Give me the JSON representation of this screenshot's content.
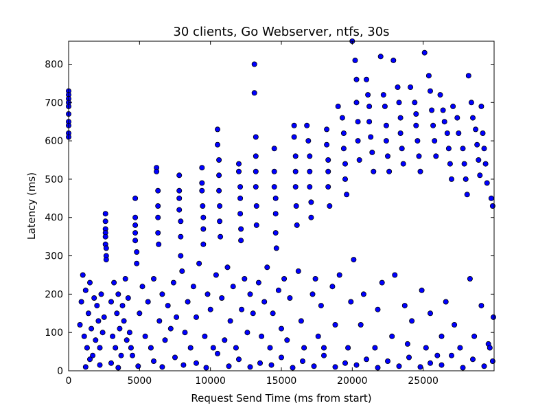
{
  "chart_data": {
    "type": "scatter",
    "title": "30 clients, Go Webserver, ntfs, 30s",
    "xlabel": "Request Send Time (ms from start)",
    "ylabel": "Latency (ms)",
    "xlim": [
      0,
      30000
    ],
    "ylim": [
      0,
      860
    ],
    "xticks": [
      0,
      5000,
      10000,
      15000,
      20000,
      25000
    ],
    "yticks": [
      0,
      100,
      200,
      300,
      400,
      500,
      600,
      700,
      800
    ],
    "grid": false,
    "legend": "none",
    "marker_color": "#0000ff",
    "marker_edge_color": "#000000",
    "series": [
      {
        "x": [
          0,
          0,
          0,
          0,
          0,
          0,
          0,
          0,
          0,
          0,
          2600,
          2600,
          2600,
          2600,
          2600,
          2600,
          2650,
          2650,
          2650,
          4700,
          4700,
          4700,
          4700,
          4700,
          4800,
          4800,
          6200,
          6200,
          6300,
          6300,
          6300,
          6300,
          6350,
          7800,
          7800,
          7800,
          7800,
          7900,
          7900,
          7900,
          9400,
          9400,
          9400,
          9450,
          9500,
          9500,
          9500,
          10500,
          10500,
          10600,
          10600,
          10600,
          10650,
          10650,
          10700,
          12000,
          12000,
          12100,
          12100,
          12100,
          12150,
          12150,
          13100,
          13100,
          13200,
          13200,
          13200,
          13200,
          13250,
          13250,
          14500,
          14500,
          14500,
          14600,
          14600,
          14600,
          14650,
          15900,
          15900,
          16000,
          16000,
          16000,
          16050,
          16100,
          16800,
          16900,
          17000,
          17000,
          17000,
          17100,
          17100,
          18200,
          18200,
          18300,
          18300,
          18300,
          18400,
          19000,
          19300,
          19400,
          19400,
          19500,
          19500,
          19600,
          20000,
          20200,
          20300,
          20300,
          20400,
          20400,
          20500,
          21000,
          21100,
          21200,
          21200,
          21300,
          21400,
          21500,
          22000,
          22200,
          22300,
          22400,
          22400,
          22500,
          22600,
          22900,
          23200,
          23300,
          23400,
          23400,
          23500,
          23600,
          24100,
          24400,
          24500,
          24500,
          24600,
          24700,
          24800,
          25100,
          25400,
          25500,
          25600,
          25700,
          25800,
          25900,
          26200,
          26400,
          26500,
          26700,
          26800,
          26900,
          27000,
          27100,
          27400,
          27500,
          27800,
          27900,
          28000,
          28100,
          28200,
          28400,
          28500,
          28700,
          28800,
          28900,
          29000,
          29100,
          29200,
          29300,
          29400,
          29500,
          29800,
          29900,
          800,
          900,
          1000,
          1100,
          1200,
          1300,
          1400,
          1500,
          1600,
          1700,
          1800,
          1900,
          2000,
          2100,
          2200,
          2300,
          2400,
          2500,
          3000,
          3100,
          3200,
          3300,
          3400,
          3500,
          3600,
          3700,
          3800,
          3900,
          4000,
          4100,
          4200,
          4300,
          4400,
          5000,
          5200,
          5400,
          5600,
          5800,
          6000,
          6400,
          6600,
          6800,
          7000,
          7200,
          7400,
          7600,
          8000,
          8200,
          8400,
          8600,
          8800,
          9000,
          9200,
          9600,
          9800,
          10000,
          10200,
          10400,
          10800,
          11000,
          11200,
          11400,
          11600,
          11800,
          12200,
          12400,
          12600,
          12800,
          13000,
          13400,
          13600,
          13800,
          14000,
          14200,
          14400,
          14800,
          15000,
          15200,
          15400,
          15600,
          16200,
          16400,
          16600,
          17200,
          17400,
          17600,
          17800,
          18000,
          18600,
          18800,
          19100,
          19700,
          19900,
          20100,
          20600,
          20800,
          21600,
          21800,
          22100,
          22800,
          23000,
          23700,
          23900,
          24200,
          24900,
          25200,
          25500,
          26000,
          26300,
          26600,
          27200,
          27600,
          28300,
          28600,
          29100,
          29600,
          29700,
          29950,
          1500,
          3000,
          4500,
          6000,
          7500,
          9000,
          10500,
          12000,
          13500,
          15000,
          16500,
          18000,
          19500,
          21000,
          22500,
          24000,
          25500,
          27000,
          28500,
          29900,
          1200,
          2200,
          3500,
          4900,
          6600,
          8100,
          9700,
          11300,
          12800,
          14300,
          15800,
          17300,
          18800,
          20300,
          21800,
          23300,
          24800,
          26300,
          27800,
          29300
        ],
        "y": [
          730,
          720,
          710,
          700,
          690,
          670,
          650,
          640,
          620,
          610,
          410,
          390,
          370,
          360,
          350,
          330,
          320,
          300,
          290,
          450,
          400,
          380,
          360,
          340,
          310,
          280,
          530,
          520,
          470,
          430,
          400,
          360,
          330,
          510,
          470,
          450,
          420,
          390,
          350,
          300,
          530,
          490,
          470,
          430,
          400,
          370,
          330,
          630,
          590,
          550,
          510,
          470,
          430,
          390,
          350,
          540,
          520,
          480,
          450,
          410,
          370,
          340,
          800,
          725,
          610,
          560,
          520,
          480,
          430,
          380,
          580,
          520,
          480,
          450,
          410,
          360,
          320,
          640,
          610,
          560,
          520,
          480,
          430,
          380,
          640,
          600,
          560,
          520,
          480,
          440,
          400,
          630,
          590,
          550,
          520,
          480,
          430,
          690,
          660,
          620,
          580,
          540,
          500,
          460,
          860,
          810,
          760,
          700,
          650,
          600,
          550,
          760,
          720,
          690,
          650,
          610,
          570,
          520,
          820,
          720,
          690,
          640,
          600,
          560,
          520,
          810,
          740,
          700,
          660,
          620,
          580,
          540,
          740,
          700,
          670,
          640,
          600,
          560,
          520,
          830,
          770,
          730,
          680,
          640,
          600,
          560,
          720,
          680,
          650,
          620,
          580,
          540,
          500,
          690,
          660,
          620,
          580,
          540,
          500,
          460,
          770,
          700,
          660,
          630,
          590,
          550,
          510,
          690,
          620,
          580,
          540,
          490,
          450,
          430,
          120,
          180,
          250,
          90,
          210,
          60,
          150,
          230,
          110,
          40,
          190,
          80,
          170,
          130,
          60,
          200,
          100,
          140,
          180,
          90,
          230,
          60,
          150,
          200,
          110,
          40,
          170,
          130,
          240,
          80,
          190,
          100,
          60,
          150,
          220,
          90,
          180,
          60,
          240,
          130,
          200,
          80,
          170,
          110,
          230,
          140,
          260,
          100,
          180,
          60,
          220,
          140,
          280,
          90,
          200,
          160,
          60,
          250,
          190,
          80,
          270,
          130,
          220,
          60,
          160,
          240,
          100,
          200,
          150,
          230,
          90,
          180,
          270,
          60,
          150,
          210,
          110,
          240,
          80,
          190,
          260,
          130,
          60,
          200,
          240,
          90,
          170,
          60,
          220,
          120,
          250,
          60,
          180,
          290,
          120,
          200,
          60,
          160,
          230,
          90,
          250,
          170,
          70,
          130,
          210,
          60,
          150,
          40,
          90,
          180,
          120,
          60,
          240,
          90,
          170,
          70,
          60,
          140,
          30,
          20,
          40,
          25,
          35,
          20,
          45,
          30,
          20,
          35,
          25,
          40,
          20,
          30,
          25,
          35,
          20,
          40,
          30,
          25,
          10,
          15,
          8,
          12,
          10,
          15,
          8,
          12,
          10,
          15,
          8,
          12,
          10,
          15,
          8,
          12,
          10,
          15,
          8,
          12
        ]
      }
    ]
  }
}
